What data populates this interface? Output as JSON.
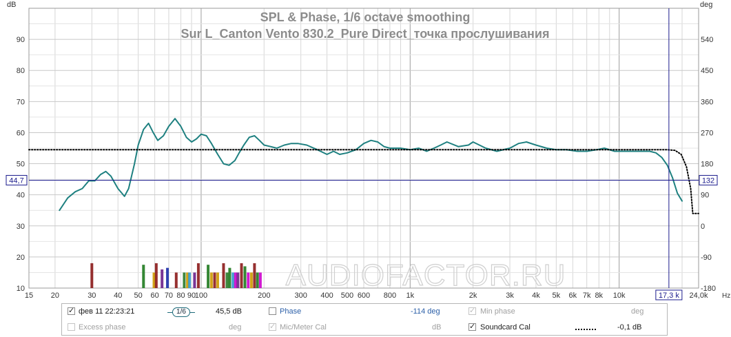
{
  "chart_data": {
    "type": "line",
    "title": "SPL & Phase, 1/6 octave smoothing",
    "subtitle": "Sur L_Canton Vento 830.2_Pure Direct_точка прослушивания",
    "ylabel_left": "dB",
    "ylabel_right": "deg",
    "xlabel": "Hz",
    "x_scale": "log",
    "xlim": [
      15,
      24000
    ],
    "ylim_left": [
      10,
      100
    ],
    "ylim_right": [
      -180,
      630
    ],
    "grid": true,
    "x_ticks": [
      {
        "v": 15,
        "t": "15"
      },
      {
        "v": 20,
        "t": "20"
      },
      {
        "v": 30,
        "t": "30"
      },
      {
        "v": 40,
        "t": "40"
      },
      {
        "v": 50,
        "t": "50"
      },
      {
        "v": 60,
        "t": "60"
      },
      {
        "v": 70,
        "t": "70"
      },
      {
        "v": 80,
        "t": "80"
      },
      {
        "v": 90,
        "t": "90"
      },
      {
        "v": 100,
        "t": "100"
      },
      {
        "v": 200,
        "t": "200"
      },
      {
        "v": 300,
        "t": "300"
      },
      {
        "v": 400,
        "t": "400"
      },
      {
        "v": 500,
        "t": "500"
      },
      {
        "v": 600,
        "t": "600"
      },
      {
        "v": 800,
        "t": "800"
      },
      {
        "v": 1000,
        "t": "1k"
      },
      {
        "v": 2000,
        "t": "2k"
      },
      {
        "v": 3000,
        "t": "3k"
      },
      {
        "v": 4000,
        "t": "4k"
      },
      {
        "v": 5000,
        "t": "5k"
      },
      {
        "v": 6000,
        "t": "6k"
      },
      {
        "v": 7000,
        "t": "7k"
      },
      {
        "v": 8000,
        "t": "8k"
      },
      {
        "v": 10000,
        "t": "10k"
      },
      {
        "v": 24000,
        "t": "24,0k"
      }
    ],
    "y_ticks_left": [
      10,
      20,
      30,
      40,
      50,
      60,
      70,
      80,
      90
    ],
    "y_ticks_right": [
      -180,
      -90,
      0,
      90,
      180,
      270,
      360,
      450,
      540
    ],
    "series": [
      {
        "name": "фев 11 22:23:21",
        "color": "#1e8080",
        "x": [
          21,
          23,
          25,
          27,
          29,
          31,
          33,
          35,
          37,
          40,
          43,
          45,
          48,
          50,
          53,
          56,
          59,
          62,
          66,
          70,
          75,
          80,
          85,
          90,
          95,
          100,
          106,
          112,
          120,
          128,
          136,
          145,
          152,
          160,
          170,
          180,
          190,
          200,
          215,
          230,
          250,
          270,
          290,
          320,
          360,
          400,
          430,
          460,
          500,
          550,
          600,
          650,
          700,
          750,
          800,
          900,
          1000,
          1100,
          1200,
          1300,
          1400,
          1500,
          1700,
          1900,
          2000,
          2300,
          2600,
          3000,
          3300,
          3600,
          4000,
          4500,
          5000,
          5600,
          6300,
          7000,
          7800,
          8500,
          9500,
          10000,
          12000,
          14000,
          15000,
          16000,
          17000,
          18000,
          19000,
          20000
        ],
        "y": [
          35,
          39,
          41,
          42,
          44.5,
          44.5,
          46.5,
          47.5,
          46,
          42,
          39.5,
          42,
          50,
          56,
          61,
          63,
          60,
          57.5,
          59,
          62,
          64.5,
          62,
          58.5,
          57,
          58,
          59.5,
          59,
          56.5,
          53,
          50,
          49.5,
          51,
          53.5,
          56,
          58.5,
          59,
          57.5,
          56,
          55.5,
          55,
          56,
          56.5,
          56.5,
          56,
          54.5,
          53,
          54,
          53,
          53.5,
          54.5,
          56.5,
          57.5,
          57,
          55.5,
          55,
          55,
          54.5,
          55,
          54,
          55,
          56,
          57,
          55.5,
          56,
          57,
          55,
          54,
          55,
          56.5,
          57,
          56,
          55,
          54.5,
          54.5,
          54,
          54,
          54.5,
          55,
          54,
          54,
          54,
          54,
          53.5,
          52,
          49.5,
          45.5,
          40.5,
          38
        ]
      },
      {
        "name": "Soundcard Cal",
        "color": "#000000",
        "style": "dotted",
        "x": [
          15,
          1000,
          10000,
          17000,
          18500,
          19800,
          21000,
          22000,
          22500,
          24000
        ],
        "y": [
          54.5,
          54.5,
          54.5,
          54.5,
          54.3,
          53,
          49,
          42,
          34,
          34
        ]
      }
    ],
    "cursor": {
      "x": 17300,
      "x_label": "17,3 k",
      "y": 44.7,
      "y_label": "44,7",
      "deg_label": "132"
    },
    "bars": [
      {
        "x": 30,
        "h": 18,
        "c": "#8b1a1a"
      },
      {
        "x": 53,
        "h": 17.5,
        "c": "#1e7a1e"
      },
      {
        "x": 59.5,
        "h": 15,
        "c": "#cc9900"
      },
      {
        "x": 61,
        "h": 18,
        "c": "#8b1a1a"
      },
      {
        "x": 65,
        "h": 16,
        "c": "#6a1f8a"
      },
      {
        "x": 69,
        "h": 16.5,
        "c": "#1a2ea8"
      },
      {
        "x": 76,
        "h": 15,
        "c": "#8b1a1a"
      },
      {
        "x": 83,
        "h": 15,
        "c": "#2a7a2a"
      },
      {
        "x": 86,
        "h": 15,
        "c": "#cc9900"
      },
      {
        "x": 88,
        "h": 15,
        "c": "#3399cc"
      },
      {
        "x": 93,
        "h": 15,
        "c": "#6a1f8a"
      },
      {
        "x": 97,
        "h": 18,
        "c": "#8b1a1a"
      },
      {
        "x": 108,
        "h": 17.5,
        "c": "#1e7a1e"
      },
      {
        "x": 112,
        "h": 15,
        "c": "#cc9900"
      },
      {
        "x": 116,
        "h": 15,
        "c": "#8b1a1a"
      },
      {
        "x": 120,
        "h": 15,
        "c": "#cc9900"
      },
      {
        "x": 128,
        "h": 18,
        "c": "#8b1a1a"
      },
      {
        "x": 133,
        "h": 15,
        "c": "#2a7a2a"
      },
      {
        "x": 137,
        "h": 16.5,
        "c": "#1e7a1e"
      },
      {
        "x": 142,
        "h": 15,
        "c": "#3399cc"
      },
      {
        "x": 146,
        "h": 15,
        "c": "#cc00cc"
      },
      {
        "x": 150,
        "h": 15,
        "c": "#6a1f8a"
      },
      {
        "x": 156,
        "h": 18,
        "c": "#8b1a1a"
      },
      {
        "x": 162,
        "h": 17,
        "c": "#1e7a1e"
      },
      {
        "x": 168,
        "h": 15,
        "c": "#cc00cc"
      },
      {
        "x": 174,
        "h": 15,
        "c": "#cc9900"
      },
      {
        "x": 180,
        "h": 18,
        "c": "#8b1a1a"
      },
      {
        "x": 186,
        "h": 15,
        "c": "#1e7a1e"
      },
      {
        "x": 192,
        "h": 15,
        "c": "#cc00cc"
      }
    ],
    "watermark": "AUDIOFACTOR.RU"
  },
  "legend": {
    "row1": {
      "meas_label": "фев 11 22:23:21",
      "smoothing": "1/6",
      "spl_value": "45,5 dB",
      "phase_label": "Phase",
      "phase_value": "-114 deg",
      "min_phase_label": "Min phase",
      "min_phase_unit": "deg"
    },
    "row2": {
      "excess_label": "Excess phase",
      "excess_unit": "deg",
      "mic_label": "Mic/Meter Cal",
      "mic_unit": "dB",
      "soundcard_label": "Soundcard Cal",
      "soundcard_value": "-0,1 dB"
    }
  }
}
